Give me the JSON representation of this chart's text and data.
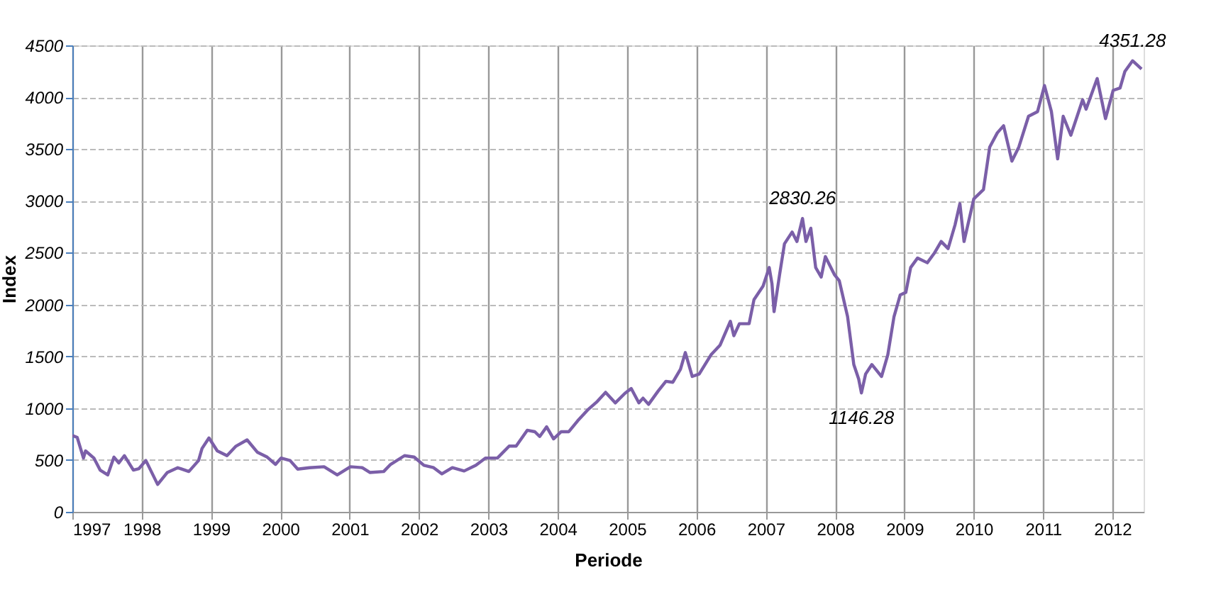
{
  "chart_data": {
    "type": "line",
    "xlabel": "Periode",
    "ylabel": "Index",
    "xlim": [
      1997,
      2012.45
    ],
    "xticks": [
      1997,
      1998,
      1999,
      2000,
      2001,
      2002,
      2003,
      2004,
      2005,
      2006,
      2007,
      2008,
      2009,
      2010,
      2011,
      2012
    ],
    "ylim": [
      0,
      4500
    ],
    "yticks": [
      0,
      500,
      1000,
      1500,
      2000,
      2500,
      3000,
      3500,
      4000,
      4500
    ],
    "grid": true,
    "marker": "none",
    "line_style": "solid",
    "annotations": [
      {
        "text": "2830.26",
        "x": 2007.53,
        "y": 2830.26
      },
      {
        "text": "1146.28",
        "x": 2008.38,
        "y": 1146.28
      },
      {
        "text": "4351.28",
        "x": 2012.29,
        "y": 4351.28
      }
    ],
    "series": [
      {
        "color": "#7b5fa8",
        "x": [
          1997.0,
          1997.07,
          1997.16,
          1997.19,
          1997.31,
          1997.4,
          1997.51,
          1997.6,
          1997.67,
          1997.75,
          1997.88,
          1997.96,
          1998.06,
          1998.23,
          1998.37,
          1998.52,
          1998.68,
          1998.82,
          1998.87,
          1998.97,
          1999.09,
          1999.23,
          1999.36,
          1999.52,
          1999.67,
          1999.81,
          1999.93,
          2000.01,
          2000.14,
          2000.25,
          2000.42,
          2000.63,
          2000.82,
          2001.01,
          2001.18,
          2001.29,
          2001.49,
          2001.59,
          2001.79,
          2001.93,
          2002.07,
          2002.21,
          2002.33,
          2002.48,
          2002.65,
          2002.82,
          2002.96,
          2003.13,
          2003.3,
          2003.4,
          2003.56,
          2003.67,
          2003.74,
          2003.84,
          2003.94,
          2004.05,
          2004.16,
          2004.29,
          2004.43,
          2004.57,
          2004.69,
          2004.83,
          2004.97,
          2005.06,
          2005.17,
          2005.23,
          2005.31,
          2005.45,
          2005.56,
          2005.66,
          2005.77,
          2005.84,
          2005.94,
          2006.04,
          2006.21,
          2006.34,
          2006.49,
          2006.54,
          2006.62,
          2006.76,
          2006.83,
          2006.96,
          2007.05,
          2007.09,
          2007.12,
          2007.2,
          2007.27,
          2007.38,
          2007.45,
          2007.53,
          2007.58,
          2007.65,
          2007.72,
          2007.8,
          2007.86,
          2007.99,
          2008.06,
          2008.18,
          2008.27,
          2008.34,
          2008.38,
          2008.44,
          2008.53,
          2008.67,
          2008.76,
          2008.85,
          2008.94,
          2009.02,
          2009.09,
          2009.19,
          2009.33,
          2009.43,
          2009.53,
          2009.63,
          2009.73,
          2009.8,
          2009.86,
          2010.0,
          2010.14,
          2010.23,
          2010.34,
          2010.43,
          2010.55,
          2010.65,
          2010.79,
          2010.92,
          2011.02,
          2011.12,
          2011.21,
          2011.29,
          2011.4,
          2011.57,
          2011.62,
          2011.78,
          2011.9,
          2012.01,
          2012.11,
          2012.18,
          2012.29,
          2012.42
        ],
        "values": [
          736,
          718,
          519,
          588,
          519,
          403,
          356,
          528,
          472,
          542,
          403,
          417,
          495,
          264,
          380,
          426,
          389,
          495,
          611,
          713,
          588,
          542,
          634,
          694,
          574,
          528,
          458,
          519,
          495,
          412,
          426,
          435,
          356,
          435,
          426,
          380,
          389,
          458,
          542,
          528,
          449,
          426,
          366,
          426,
          394,
          449,
          519,
          519,
          634,
          634,
          787,
          773,
          727,
          820,
          704,
          773,
          773,
          880,
          982,
          1065,
          1153,
          1051,
          1144,
          1190,
          1051,
          1097,
          1037,
          1167,
          1259,
          1250,
          1375,
          1537,
          1306,
          1329,
          1514,
          1607,
          1838,
          1699,
          1815,
          1815,
          2046,
          2176,
          2357,
          2200,
          1931,
          2289,
          2586,
          2699,
          2608,
          2830.26,
          2608,
          2736,
          2357,
          2265,
          2462,
          2289,
          2231,
          1884,
          1421,
          1282,
          1146.28,
          1329,
          1421,
          1306,
          1514,
          1884,
          2093,
          2116,
          2357,
          2449,
          2403,
          2494,
          2608,
          2540,
          2768,
          2973,
          2608,
          3018,
          3109,
          3519,
          3656,
          3725,
          3383,
          3519,
          3816,
          3861,
          4112,
          3861,
          3405,
          3816,
          3633,
          3975,
          3884,
          4180,
          3793,
          4066,
          4089,
          4249,
          4351.28,
          4272
        ]
      }
    ]
  }
}
